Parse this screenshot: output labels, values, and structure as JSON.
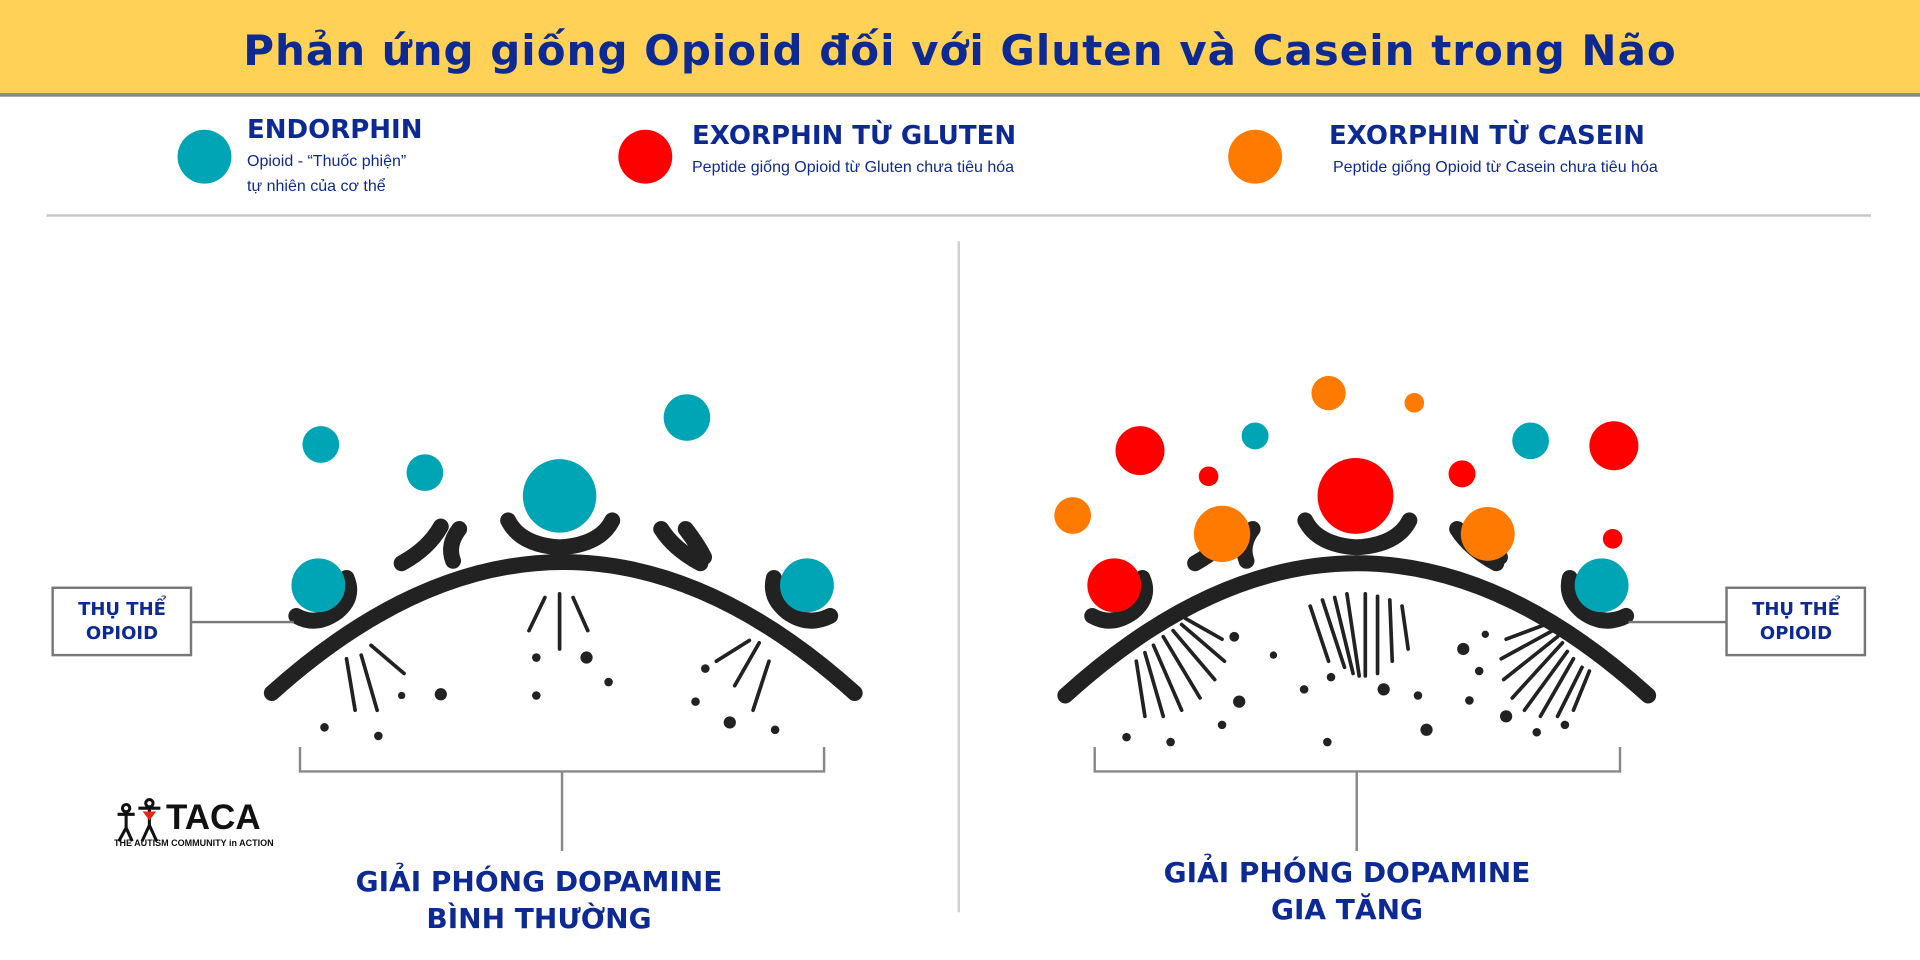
{
  "title": "Phản ứng giống Opioid đối với Gluten và Casein trong Não",
  "legend": [
    {
      "title": "ENDORPHIN",
      "line1": "Opioid - “Thuốc phiện”",
      "line2": "tự nhiên của cơ thể",
      "color": "#00a5b5"
    },
    {
      "title": "EXORPHIN TỪ GLUTEN",
      "line1": "Peptide giống Opioid từ Gluten chưa tiêu hóa",
      "color": "#ff0000"
    },
    {
      "title": "EXORPHIN TỪ CASEIN",
      "line1": "Peptide giống Opioid từ Casein chưa tiêu hóa",
      "color": "#ff7a00"
    }
  ],
  "left": {
    "receptor_label1": "THỤ THỂ",
    "receptor_label2": "OPIOID",
    "caption1": "GIẢI PHÓNG DOPAMINE",
    "caption2": "BÌNH THƯỜNG"
  },
  "right": {
    "receptor_label1": "THỤ THỂ",
    "receptor_label2": "OPIOID",
    "caption1": "GIẢI PHÓNG DOPAMINE",
    "caption2": "GIA TĂNG"
  },
  "logo": {
    "name": "TACA",
    "tagline": "THE AUTISM COMMUNITY in ACTION"
  }
}
